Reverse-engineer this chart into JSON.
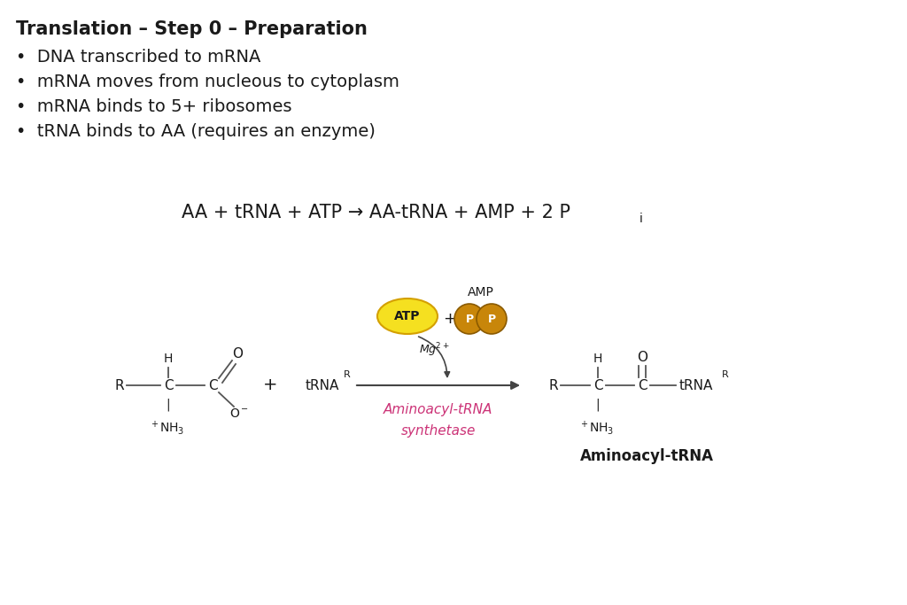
{
  "title": "Translation – Step 0 – Preparation",
  "bullets": [
    "DNA transcribed to mRNA",
    "mRNA moves from nucleous to cytoplasm",
    "mRNA binds to 5+ ribosomes",
    "tRNA binds to AA (requires an enzyme)"
  ],
  "bg_color": "#ffffff",
  "text_color": "#1a1a1a",
  "pink_color": "#cc3377",
  "atp_fill": "#f5e020",
  "atp_stroke": "#d4a000",
  "pp_fill": "#c8860a",
  "pp_stroke": "#8a5a00",
  "arrow_color": "#444444",
  "bond_color": "#555555",
  "title_fontsize": 15,
  "bullet_fontsize": 14,
  "eq_fontsize": 15
}
